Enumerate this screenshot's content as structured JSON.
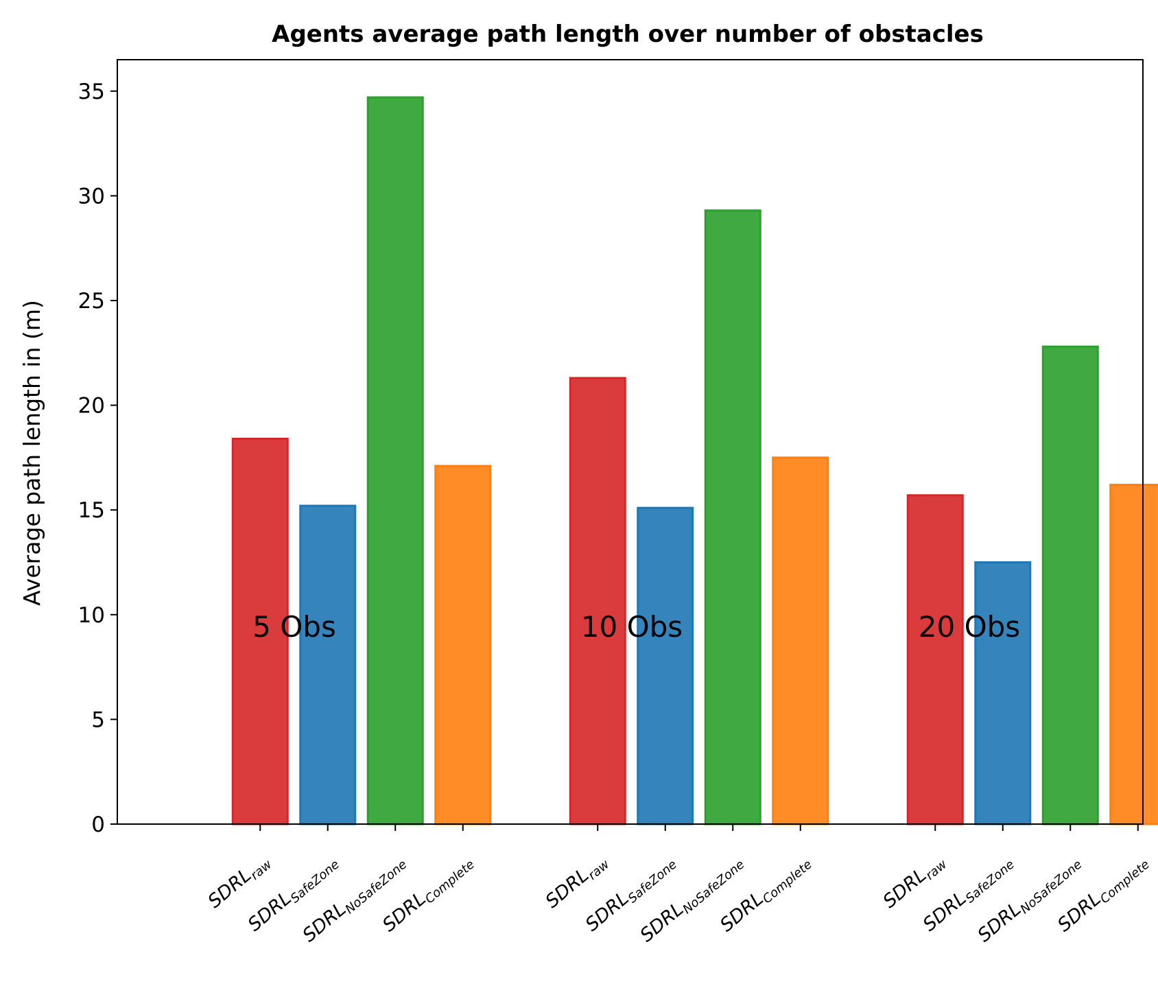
{
  "chart_data": {
    "type": "bar",
    "title": "Agents average path length over number of obstacles",
    "xlabel": "",
    "ylabel": "Average path length in (m)",
    "ylim": [
      0,
      36.5
    ],
    "yticks": [
      "0",
      "5",
      "10",
      "15",
      "20",
      "25",
      "30",
      "35"
    ],
    "grid": false,
    "groups": [
      {
        "label": "5 Obs",
        "bars": [
          {
            "base": "SDRL",
            "sub": "raw",
            "value": 18.4,
            "color": "#d62728"
          },
          {
            "base": "SDRL",
            "sub": "SafeZone",
            "value": 15.2,
            "color": "#1f77b4"
          },
          {
            "base": "SDRL",
            "sub": "NoSafeZone",
            "value": 34.7,
            "color": "#2ca02c"
          },
          {
            "base": "SDRL",
            "sub": "Complete",
            "value": 17.1,
            "color": "#ff7f0e"
          }
        ]
      },
      {
        "label": "10 Obs",
        "bars": [
          {
            "base": "SDRL",
            "sub": "raw",
            "value": 21.3,
            "color": "#d62728"
          },
          {
            "base": "SDRL",
            "sub": "SafeZone",
            "value": 15.1,
            "color": "#1f77b4"
          },
          {
            "base": "SDRL",
            "sub": "NoSafeZone",
            "value": 29.3,
            "color": "#2ca02c"
          },
          {
            "base": "SDRL",
            "sub": "Complete",
            "value": 17.5,
            "color": "#ff7f0e"
          }
        ]
      },
      {
        "label": "20 Obs",
        "bars": [
          {
            "base": "SDRL",
            "sub": "raw",
            "value": 15.7,
            "color": "#d62728"
          },
          {
            "base": "SDRL",
            "sub": "SafeZone",
            "value": 12.5,
            "color": "#1f77b4"
          },
          {
            "base": "SDRL",
            "sub": "NoSafeZone",
            "value": 22.8,
            "color": "#2ca02c"
          },
          {
            "base": "SDRL",
            "sub": "Complete",
            "value": 16.2,
            "color": "#ff7f0e"
          }
        ]
      }
    ]
  }
}
